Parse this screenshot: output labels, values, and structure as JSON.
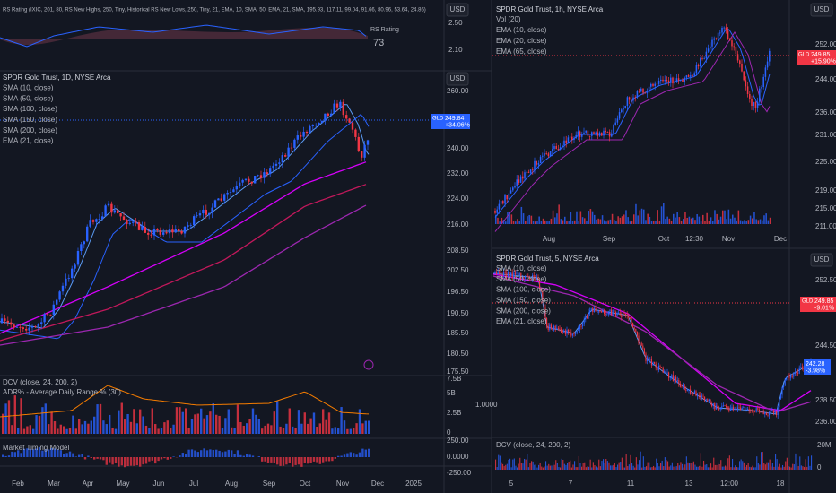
{
  "left": {
    "rs": {
      "legend": "RS Rating (IXIC, 201, 80, RS New Highs, 250, Tiny, Historical RS New Lows, 250, Tiny, 21, EMA, 10, SMA, 50, EMA, 21, SMA, 195.93, 117.11, 99.04, 91.66, 80.96, 53.64, 24.86)",
      "label": "RS Rating",
      "value": "73",
      "currency": "USD",
      "axis": [
        "2.50",
        "2.10"
      ]
    },
    "main": {
      "title": "SPDR Gold Trust, 1D, NYSE Arca",
      "currency": "USD",
      "indicators": [
        "SMA (10, close)",
        "SMA (50, close)",
        "SMA (100, close)",
        "SMA (150, close)",
        "SMA (200, close)",
        "EMA (21, close)"
      ],
      "axis": [
        "260.00",
        "240.00",
        "232.00",
        "224.00",
        "216.00",
        "208.50",
        "202.50",
        "196.50",
        "190.50",
        "185.50",
        "180.50",
        "175.50"
      ],
      "tag": {
        "symbol": "GLD",
        "price": "249.84",
        "change": "+34.06%"
      }
    },
    "dcv": {
      "indicators": [
        "DCV (close, 24, 200, 2)",
        "ADR% - Average Daily Range % (30)"
      ],
      "axis": [
        "7.5B",
        "5B",
        "2.5B",
        "0"
      ],
      "adr_axis": "1.0000"
    },
    "mtm": {
      "title": "Market Timing Model",
      "axis": [
        "250.00",
        "0.0000",
        "-250.00"
      ]
    },
    "xaxis": [
      "Feb",
      "Mar",
      "Apr",
      "May",
      "Jun",
      "Jul",
      "Aug",
      "Sep",
      "Oct",
      "Nov",
      "Dec",
      "2025"
    ]
  },
  "right": {
    "hourly": {
      "title": "SPDR Gold Trust, 1h, NYSE Arca",
      "currency": "USD",
      "indicators": [
        "Vol (20)",
        "EMA (10, close)",
        "EMA (20, close)",
        "EMA (65, close)"
      ],
      "axis": [
        "252.00",
        "244.00",
        "236.00",
        "231.00",
        "225.00",
        "219.00",
        "215.00",
        "211.00"
      ],
      "tag": {
        "symbol": "GLD",
        "price": "249.85",
        "change": "+15.90%"
      },
      "xaxis": [
        "Aug",
        "Sep",
        "Oct",
        "12:30",
        "Nov",
        "Dec"
      ]
    },
    "five": {
      "title": "SPDR Gold Trust, 5, NYSE Arca",
      "currency": "USD",
      "indicators": [
        "SMA (10, close)",
        "SMA (50, close)",
        "SMA (100, close)",
        "SMA (150, close)",
        "SMA (200, close)",
        "EMA (21, close)"
      ],
      "axis": [
        "252.50",
        "244.50",
        "238.50",
        "236.00"
      ],
      "tag": {
        "symbol": "GLD",
        "price": "249.85",
        "change": "-9.01%"
      },
      "tag2": {
        "price": "242.28",
        "change": "-3.98%"
      },
      "dcv": {
        "title": "DCV (close, 24, 200, 2)",
        "axis": [
          "20M",
          "0"
        ]
      },
      "xaxis": [
        "5",
        "7",
        "11",
        "13",
        "12:00",
        "18"
      ]
    }
  }
}
